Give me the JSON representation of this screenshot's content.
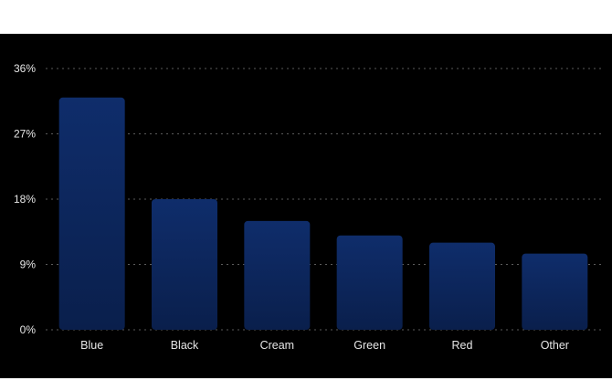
{
  "chart_data": {
    "type": "bar",
    "title": "",
    "xlabel": "",
    "ylabel": "",
    "categories": [
      "Blue",
      "Black",
      "Cream",
      "Green",
      "Red",
      "Other"
    ],
    "values": [
      32,
      18,
      15,
      13,
      12,
      10.5
    ],
    "ylim": [
      0,
      36
    ],
    "yticks": [
      0,
      9,
      18,
      27,
      36
    ],
    "ytick_labels": [
      "0%",
      "9%",
      "18%",
      "27%",
      "36%"
    ],
    "grid": true,
    "colors": {
      "bar_top": "#0f2d6b",
      "bar_bottom": "#0a1f4c",
      "background": "#000000",
      "page": "#ffffff",
      "grid": "#5a5a5a",
      "text": "#e6e6e6"
    }
  }
}
